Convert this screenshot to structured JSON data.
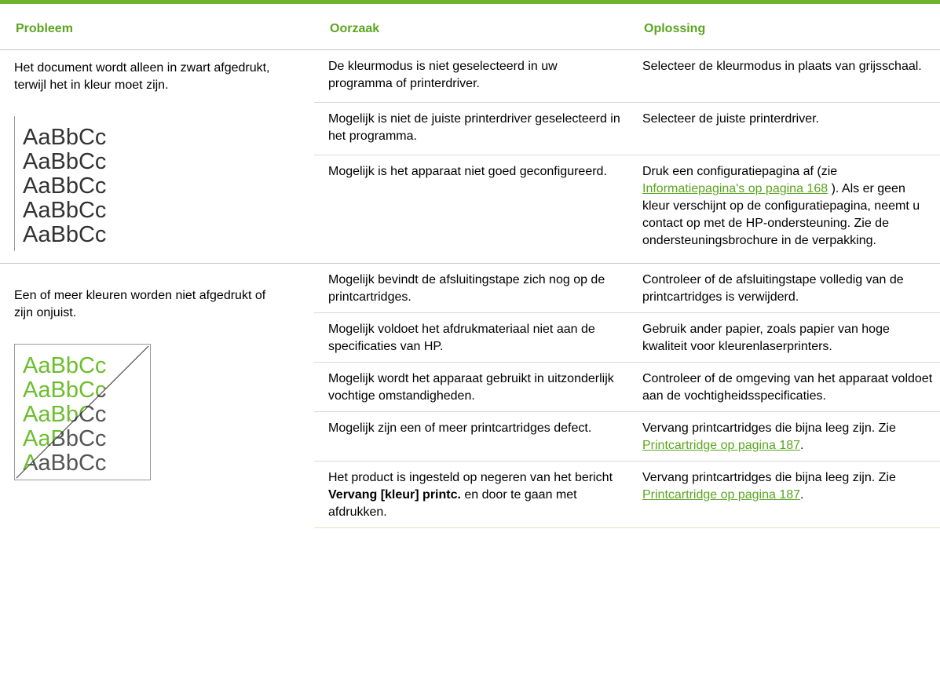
{
  "header": [
    "Probleem",
    "Oorzaak",
    "Oplossing"
  ],
  "groups": [
    {
      "problem": "Het document wordt alleen in zwart afgedrukt, terwijl het in kleur moet zijn.",
      "sample": [
        "AaBbCc",
        "AaBbCc",
        "AaBbCc",
        "AaBbCc",
        "AaBbCc"
      ],
      "rows": [
        {
          "cause": "De kleurmodus is niet geselecteerd in uw programma of printerdriver.",
          "solution": "Selecteer de kleurmodus in plaats van grijsschaal."
        },
        {
          "cause": "Mogelijk is niet de juiste printerdriver geselecteerd in het programma.",
          "solution": "Selecteer de juiste printerdriver."
        },
        {
          "cause": "Mogelijk is het apparaat niet goed geconfigureerd.",
          "solution": [
            {
              "text": "Druk een configuratiepagina af (zie "
            },
            {
              "link": "Informatiepagina's op pagina 168"
            },
            {
              "text": " ). Als er geen kleur verschijnt op de configuratiepagina, neemt u contact op met de HP-ondersteuning. Zie de ondersteuningsbrochure in de verpakking."
            }
          ]
        }
      ]
    },
    {
      "problem": "Een of meer kleuren worden niet afgedrukt of zijn onjuist.",
      "sample": [
        "AaBbCc",
        "AaBbCc",
        "AaBbCc",
        "AaBbCc",
        "AaBbCc"
      ],
      "rows": [
        {
          "cause": "Mogelijk bevindt de afsluitingstape zich nog op de printcartridges.",
          "solution": "Controleer of de afsluitingstape volledig van de printcartridges is verwijderd."
        },
        {
          "cause": "Mogelijk voldoet het afdrukmateriaal niet aan de specificaties van HP.",
          "solution": "Gebruik ander papier, zoals papier van hoge kwaliteit voor kleurenlaserprinters."
        },
        {
          "cause": "Mogelijk wordt het apparaat gebruikt in uitzonderlijk vochtige omstandigheden.",
          "solution": "Controleer of de omgeving van het apparaat voldoet aan de vochtigheidsspecificaties."
        },
        {
          "cause": "Mogelijk zijn een of meer printcartridges defect.",
          "solution": [
            {
              "text": "Vervang printcartridges die bijna leeg zijn. Zie "
            },
            {
              "link": "Printcartridge op pagina 187"
            },
            {
              "text": "."
            }
          ]
        },
        {
          "cause": [
            {
              "text": "Het product is ingesteld op negeren van het bericht "
            },
            {
              "bold": "Vervang [kleur] printc."
            },
            {
              "text": " en door te gaan met afdrukken."
            }
          ],
          "solution": [
            {
              "text": "Vervang printcartridges die bijna leeg zijn. Zie "
            },
            {
              "link": "Printcartridge op pagina 187"
            },
            {
              "text": "."
            }
          ]
        }
      ]
    }
  ]
}
